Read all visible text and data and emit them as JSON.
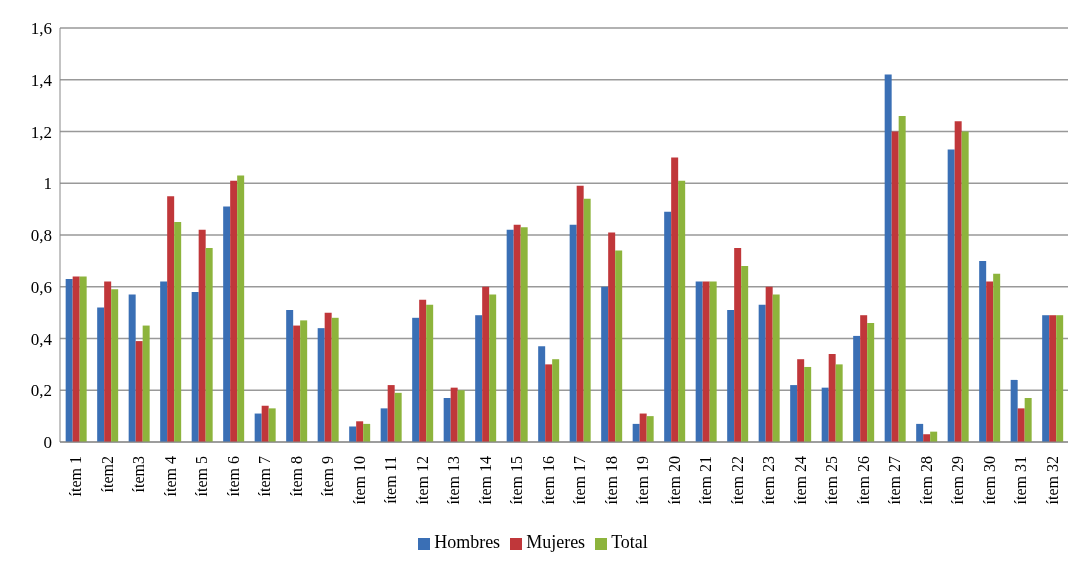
{
  "chart_data": {
    "type": "bar",
    "categories": [
      "ítem 1",
      "ítem2",
      "ítem3",
      "ítem 4",
      "ítem 5",
      "ítem 6",
      "ítem 7",
      "ítem 8",
      "ítem 9",
      "ítem 10",
      "ítem 11",
      "ítem 12",
      "ítem 13",
      "ítem 14",
      "ítem 15",
      "ítem 16",
      "ítem 17",
      "ítem 18",
      "ítem 19",
      "ítem 20",
      "ítem 21",
      "ítem 22",
      "ítem 23",
      "ítem 24",
      "ítem 25",
      "ítem 26",
      "ítem 27",
      "ítem 28",
      "ítem 29",
      "ítem 30",
      "ítem 31",
      "ítem 32"
    ],
    "series": [
      {
        "name": "Hombres",
        "color": "#3a6fb5",
        "values": [
          0.63,
          0.52,
          0.57,
          0.62,
          0.58,
          0.91,
          0.11,
          0.51,
          0.44,
          0.06,
          0.13,
          0.48,
          0.17,
          0.49,
          0.82,
          0.37,
          0.84,
          0.6,
          0.07,
          0.89,
          0.62,
          0.51,
          0.53,
          0.22,
          0.21,
          0.41,
          1.42,
          0.07,
          1.13,
          0.7,
          0.24,
          0.49
        ]
      },
      {
        "name": "Mujeres",
        "color": "#c0373a",
        "values": [
          0.64,
          0.62,
          0.39,
          0.95,
          0.82,
          1.01,
          0.14,
          0.45,
          0.5,
          0.08,
          0.22,
          0.55,
          0.21,
          0.6,
          0.84,
          0.3,
          0.99,
          0.81,
          0.11,
          1.1,
          0.62,
          0.75,
          0.6,
          0.32,
          0.34,
          0.49,
          1.2,
          0.03,
          1.24,
          0.62,
          0.13,
          0.49
        ]
      },
      {
        "name": "Total",
        "color": "#8db43c",
        "values": [
          0.64,
          0.59,
          0.45,
          0.85,
          0.75,
          1.03,
          0.13,
          0.47,
          0.48,
          0.07,
          0.19,
          0.53,
          0.2,
          0.57,
          0.83,
          0.32,
          0.94,
          0.74,
          0.1,
          1.01,
          0.62,
          0.68,
          0.57,
          0.29,
          0.3,
          0.46,
          1.26,
          0.04,
          1.2,
          0.65,
          0.17,
          0.49
        ]
      }
    ],
    "ylim": [
      0,
      1.6
    ],
    "yticks": [
      0,
      {
        "value": 0.2,
        "label": "0,2"
      },
      {
        "value": 0.4,
        "label": "0,4"
      },
      {
        "value": 0.6,
        "label": "0,6"
      },
      {
        "value": 0.8,
        "label": "0,8"
      },
      1,
      {
        "value": 1.2,
        "label": "1,2"
      },
      {
        "value": 1.4,
        "label": "1,4"
      },
      {
        "value": 1.6,
        "label": "1,6"
      }
    ],
    "grid": "y",
    "legend": "bottom"
  }
}
